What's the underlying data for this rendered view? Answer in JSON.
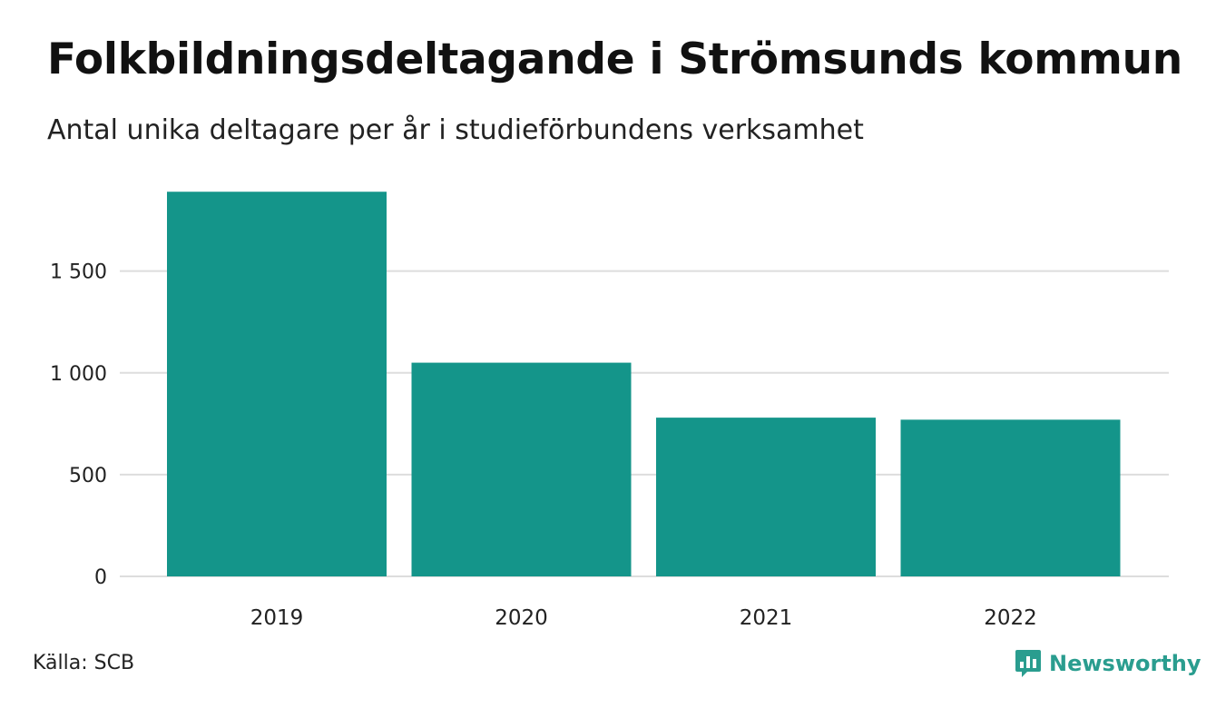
{
  "header": {
    "title": "Folkbildningsdeltagande i Strömsunds kommun",
    "subtitle": "Antal unika deltagare per år i studieförbundens verksamhet"
  },
  "footer": {
    "source": "Källa: SCB",
    "brand": "Newsworthy",
    "brand_icon": "bar-chart-speech-bubble-icon"
  },
  "colors": {
    "bar": "#14958a",
    "grid": "#dddddd",
    "brand": "#2a9d8f"
  },
  "chart_data": {
    "type": "bar",
    "categories": [
      "2019",
      "2020",
      "2021",
      "2022"
    ],
    "values": [
      1890,
      1050,
      780,
      770
    ],
    "ylim": [
      0,
      1900
    ],
    "yticks": [
      0,
      500,
      1000,
      1500
    ],
    "ytick_labels": [
      "0",
      "500",
      "1 000",
      "1 500"
    ],
    "xlabel": "",
    "ylabel": "",
    "grid": true,
    "legend": "none"
  }
}
